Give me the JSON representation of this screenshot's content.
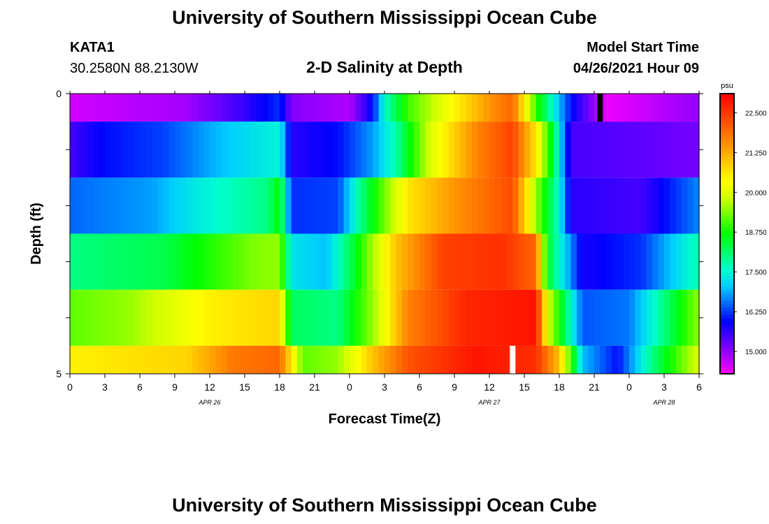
{
  "page": {
    "title_top": "University of Southern Mississippi Ocean Cube",
    "title_bottom": "University of Southern Mississippi Ocean Cube",
    "station_id": "KATA1",
    "station_coords": "30.2580N  88.2130W",
    "model_start_label": "Model Start Time",
    "model_start_value": "04/26/2021 Hour 09"
  },
  "chart_data": {
    "type": "heatmap",
    "title": "2-D Salinity at Depth",
    "xlabel": "Forecast Time(Z)",
    "ylabel": "Depth (ft)",
    "x_tick_labels": [
      "0",
      "3",
      "6",
      "9",
      "12",
      "15",
      "18",
      "21",
      "0",
      "3",
      "6",
      "9",
      "12",
      "15",
      "18",
      "21",
      "0",
      "3",
      "6"
    ],
    "date_labels": [
      {
        "label": "APR  26",
        "at_tick": 4
      },
      {
        "label": "APR  27",
        "at_tick": 12
      },
      {
        "label": "APR  28",
        "at_tick": 17
      }
    ],
    "x_range_hours": [
      0,
      54
    ],
    "y_tick_labels": [
      {
        "depth": 0,
        "label": "0"
      },
      {
        "depth": 1,
        "label": ""
      },
      {
        "depth": 2,
        "label": ""
      },
      {
        "depth": 3,
        "label": ""
      },
      {
        "depth": 4,
        "label": ""
      },
      {
        "depth": 5,
        "label": "5"
      }
    ],
    "ylim": [
      0,
      5
    ],
    "colorbar": {
      "unit": "psu",
      "min": 14.3,
      "max": 23.1,
      "ticks": [
        "15.000",
        "16.250",
        "17.500",
        "18.750",
        "20.000",
        "21.250",
        "22.500"
      ],
      "tick_values": [
        15.0,
        16.25,
        17.5,
        18.75,
        20.0,
        21.25,
        22.5
      ],
      "colors": [
        "#ff00ff",
        "#aa00ff",
        "#5500ff",
        "#0000ff",
        "#0066ff",
        "#00ccff",
        "#00ffcc",
        "#00ff66",
        "#00ff00",
        "#66ff00",
        "#ccff00",
        "#ffff00",
        "#ffcc00",
        "#ff9900",
        "#ff6600",
        "#ff3300",
        "#ff0000"
      ]
    },
    "rows": [
      {
        "depth_top": 0.0,
        "depth_bottom": 0.5,
        "keys": [
          [
            0,
            14.6
          ],
          [
            10,
            14.9
          ],
          [
            15,
            15.6
          ],
          [
            18,
            16.2
          ],
          [
            19,
            15.1
          ],
          [
            24,
            14.8
          ],
          [
            26,
            16.0
          ],
          [
            27,
            17.6
          ],
          [
            29,
            19.0
          ],
          [
            36,
            21.5
          ],
          [
            38,
            22.0
          ],
          [
            40,
            19.0
          ],
          [
            42,
            17.0
          ],
          [
            43,
            16.0
          ],
          [
            45,
            15.0
          ],
          [
            46,
            14.4
          ],
          [
            54,
            15.0
          ]
        ]
      },
      {
        "depth_top": 0.5,
        "depth_bottom": 1.5,
        "keys": [
          [
            0,
            15.5
          ],
          [
            3,
            16.0
          ],
          [
            8,
            16.3
          ],
          [
            13,
            17.0
          ],
          [
            18,
            17.5
          ],
          [
            19,
            15.7
          ],
          [
            23,
            16.0
          ],
          [
            26,
            16.8
          ],
          [
            28,
            17.8
          ],
          [
            31,
            20.0
          ],
          [
            35,
            21.7
          ],
          [
            38,
            22.4
          ],
          [
            40,
            20.6
          ],
          [
            41.5,
            18.3
          ],
          [
            43,
            15.5
          ],
          [
            54,
            15.2
          ]
        ]
      },
      {
        "depth_top": 1.5,
        "depth_bottom": 2.5,
        "keys": [
          [
            0,
            16.5
          ],
          [
            7,
            16.8
          ],
          [
            11,
            17.4
          ],
          [
            17,
            18.0
          ],
          [
            18,
            18.8
          ],
          [
            19,
            16.2
          ],
          [
            23,
            16.3
          ],
          [
            25,
            18.0
          ],
          [
            29,
            20.6
          ],
          [
            33,
            21.5
          ],
          [
            38,
            22.3
          ],
          [
            40,
            19.5
          ],
          [
            42,
            17.5
          ],
          [
            43,
            15.7
          ],
          [
            49,
            15.5
          ],
          [
            54,
            16.7
          ]
        ]
      },
      {
        "depth_top": 2.5,
        "depth_bottom": 3.5,
        "keys": [
          [
            0,
            18.0
          ],
          [
            8,
            18.3
          ],
          [
            13,
            19.0
          ],
          [
            16,
            19.4
          ],
          [
            18,
            19.5
          ],
          [
            19,
            17.3
          ],
          [
            22,
            17.0
          ],
          [
            24,
            18.2
          ],
          [
            28,
            21.0
          ],
          [
            32,
            22.4
          ],
          [
            37,
            22.6
          ],
          [
            40,
            22.0
          ],
          [
            41,
            18.5
          ],
          [
            44,
            15.8
          ],
          [
            49,
            16.2
          ],
          [
            54,
            17.8
          ]
        ]
      },
      {
        "depth_top": 3.5,
        "depth_bottom": 4.5,
        "keys": [
          [
            0,
            19.2
          ],
          [
            5,
            19.5
          ],
          [
            12,
            20.5
          ],
          [
            18,
            20.8
          ],
          [
            19,
            18.2
          ],
          [
            23,
            18.0
          ],
          [
            26,
            19.5
          ],
          [
            29,
            21.7
          ],
          [
            34,
            22.7
          ],
          [
            40,
            22.9
          ],
          [
            41,
            20.0
          ],
          [
            44,
            16.4
          ],
          [
            48,
            16.6
          ],
          [
            51,
            18.0
          ],
          [
            54,
            19.5
          ]
        ]
      },
      {
        "depth_top": 4.5,
        "depth_bottom": 5.0,
        "keys": [
          [
            0,
            20.5
          ],
          [
            10,
            20.8
          ],
          [
            14,
            21.8
          ],
          [
            18,
            22.0
          ],
          [
            20,
            19.2
          ],
          [
            23,
            19.5
          ],
          [
            26,
            21.0
          ],
          [
            29,
            22.2
          ],
          [
            35,
            22.9
          ],
          [
            40,
            22.6
          ],
          [
            42,
            21.0
          ],
          [
            44,
            17.0
          ],
          [
            47,
            16.0
          ],
          [
            50,
            18.0
          ],
          [
            54,
            20.0
          ]
        ]
      }
    ],
    "markers": [
      {
        "hour": 45.5,
        "depth_top": 0.0,
        "depth_bottom": 0.5,
        "color": "#000000"
      },
      {
        "hour": 38.0,
        "depth_top": 4.5,
        "depth_bottom": 5.0,
        "color": "#ffffff"
      }
    ]
  }
}
